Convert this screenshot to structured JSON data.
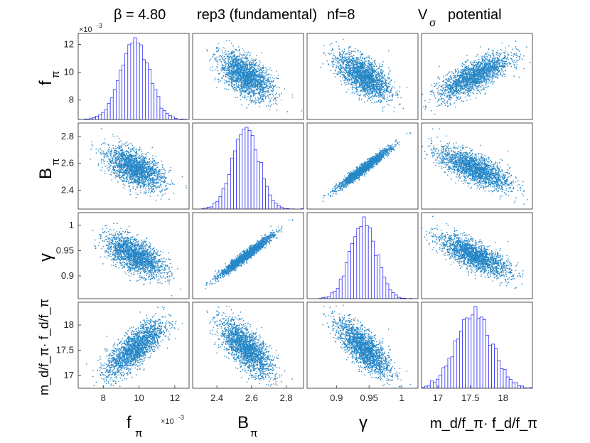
{
  "chart_data": {
    "type": "scatter-matrix",
    "title": {
      "beta": "β = 4.80",
      "rep": "rep3 (fundamental)",
      "nf": "nf=8",
      "potential": "V",
      "potential_sub": "σ",
      "potential_word": "potential"
    },
    "variables": [
      {
        "name": "f_pi",
        "label": "f",
        "sub": "π",
        "mean": 9.75,
        "sd": 0.8,
        "range": [
          6.6,
          12.8
        ],
        "ticks": [
          8,
          10,
          12
        ],
        "y_ticks": [
          8,
          10,
          12
        ],
        "multiplier": "×10",
        "multiplier_exp": "-3"
      },
      {
        "name": "B_pi",
        "label": "B",
        "sub": "π",
        "mean": 2.565,
        "sd": 0.075,
        "range": [
          2.26,
          2.9
        ],
        "ticks": [
          2.4,
          2.6,
          2.8
        ],
        "y_ticks": [
          2.4,
          2.6,
          2.8
        ]
      },
      {
        "name": "gamma",
        "label": "γ",
        "sub": "",
        "mean": 0.941,
        "sd": 0.02,
        "range": [
          0.855,
          1.025
        ],
        "ticks": [
          0.9,
          0.95,
          1
        ],
        "y_ticks": [
          0.9,
          0.95,
          1
        ]
      },
      {
        "name": "md_fpi_fd_fpi",
        "label": "m_d/f_π· f_d/f_π",
        "sub": "",
        "mean": 17.55,
        "sd": 0.27,
        "range": [
          16.75,
          18.45
        ],
        "ticks": [
          17,
          17.5,
          18
        ],
        "y_ticks": [
          17,
          17.5,
          18
        ]
      }
    ],
    "correlations": [
      [
        1.0,
        -0.55,
        -0.6,
        0.75
      ],
      [
        -0.55,
        1.0,
        0.97,
        -0.7
      ],
      [
        -0.6,
        0.97,
        1.0,
        -0.75
      ],
      [
        0.75,
        -0.7,
        -0.75,
        1.0
      ]
    ],
    "n_samples": 2000,
    "colors": {
      "scatter": "#0072BD",
      "hist_bar": "#ffffff",
      "hist_edge": "#1a1aff",
      "axis": "#262626"
    }
  }
}
